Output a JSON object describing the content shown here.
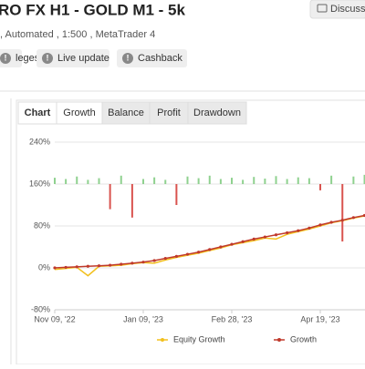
{
  "header": {
    "title": "RO FX H1 - GOLD M1 - 5k",
    "subtitle": ", Automated , 1:500 , MetaTrader 4",
    "discuss": "Discuss"
  },
  "badges": [
    "leges",
    "Live update",
    "Cashback"
  ],
  "tabs": [
    "Chart",
    "Growth",
    "Balance",
    "Profit",
    "Drawdown"
  ],
  "chart_data": {
    "type": "line",
    "categories": [
      "Nov 09, '22",
      null,
      null,
      null,
      null,
      null,
      null,
      null,
      "Jan 09, '23",
      null,
      null,
      null,
      null,
      null,
      null,
      null,
      "Feb 28, '23",
      null,
      null,
      null,
      null,
      null,
      null,
      null,
      "Apr 19, '23",
      null,
      null,
      null,
      null
    ],
    "series": [
      {
        "name": "Equity Growth",
        "color": "#f2c01e",
        "values": [
          -3,
          -1,
          1,
          -15,
          3,
          4,
          5,
          8,
          10,
          9,
          15,
          20,
          24,
          28,
          33,
          38,
          44,
          48,
          52,
          57,
          55,
          64,
          69,
          74,
          80,
          86,
          90,
          95,
          99
        ]
      },
      {
        "name": "Growth",
        "color": "#c0392b",
        "values": [
          0,
          1,
          2,
          3,
          4,
          5,
          7,
          9,
          11,
          14,
          18,
          22,
          26,
          30,
          35,
          40,
          45,
          50,
          55,
          59,
          63,
          67,
          71,
          76,
          82,
          87,
          91,
          96,
          100
        ]
      }
    ],
    "bars": {
      "axis": "y2",
      "positive_color": "#8fd18f",
      "negative_color": "#d9534f",
      "values": [
        0.15,
        0.12,
        0.18,
        0.1,
        0.14,
        -0.6,
        0.2,
        -0.8,
        0.12,
        0.16,
        0.1,
        -0.5,
        0.18,
        0.14,
        0.2,
        0.12,
        0.15,
        0.1,
        0.17,
        0.13,
        0.19,
        0.12,
        0.16,
        0.14,
        -0.15,
        0.2,
        -1.37,
        0.18,
        0.22
      ]
    },
    "ylim": [
      -80,
      240
    ],
    "yticks": [
      {
        "value": -80,
        "label": "-80%"
      },
      {
        "value": 0,
        "label": "0%"
      },
      {
        "value": 80,
        "label": "80%"
      },
      {
        "value": 160,
        "label": "160%"
      },
      {
        "value": 240,
        "label": "240%"
      }
    ],
    "y2lim": [
      -3,
      1
    ],
    "grid": true
  }
}
